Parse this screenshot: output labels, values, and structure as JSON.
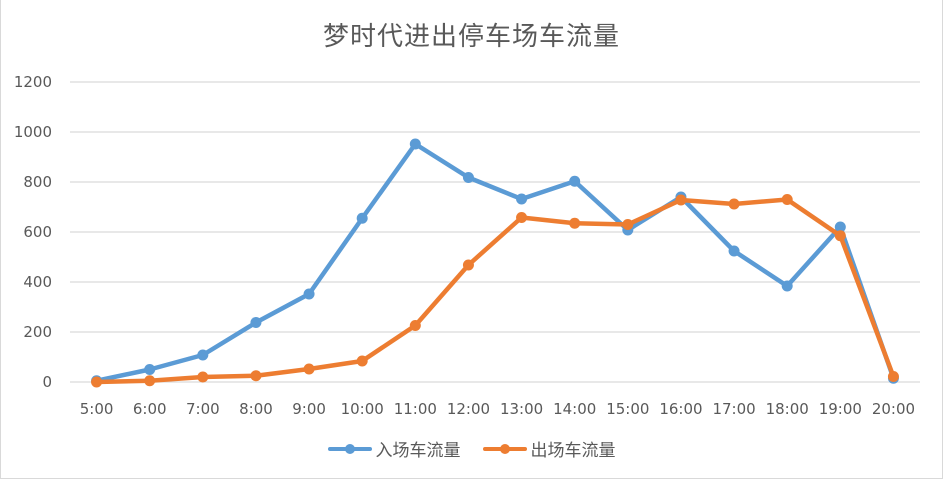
{
  "chart_data": {
    "type": "line",
    "title": "梦时代进出停车场车流量",
    "xlabel": "",
    "ylabel": "",
    "categories": [
      "5:00",
      "6:00",
      "7:00",
      "8:00",
      "9:00",
      "10:00",
      "11:00",
      "12:00",
      "13:00",
      "14:00",
      "15:00",
      "16:00",
      "17:00",
      "18:00",
      "19:00",
      "20:00"
    ],
    "series": [
      {
        "name": "入场车流量",
        "color": "#5b9bd5",
        "values": [
          5,
          50,
          108,
          238,
          352,
          655,
          952,
          818,
          732,
          803,
          608,
          740,
          524,
          384,
          620,
          15
        ]
      },
      {
        "name": "出场车流量",
        "color": "#ed7d31",
        "values": [
          0,
          5,
          20,
          25,
          52,
          84,
          226,
          468,
          658,
          635,
          630,
          728,
          712,
          730,
          585,
          22
        ]
      }
    ],
    "ylim": [
      0,
      1200
    ],
    "yticks": [
      0,
      200,
      400,
      600,
      800,
      1000,
      1200
    ],
    "grid": true,
    "legend_position": "bottom"
  },
  "legend": {
    "items": [
      {
        "label": "入场车流量",
        "color": "#5b9bd5"
      },
      {
        "label": "出场车流量",
        "color": "#ed7d31"
      }
    ]
  }
}
